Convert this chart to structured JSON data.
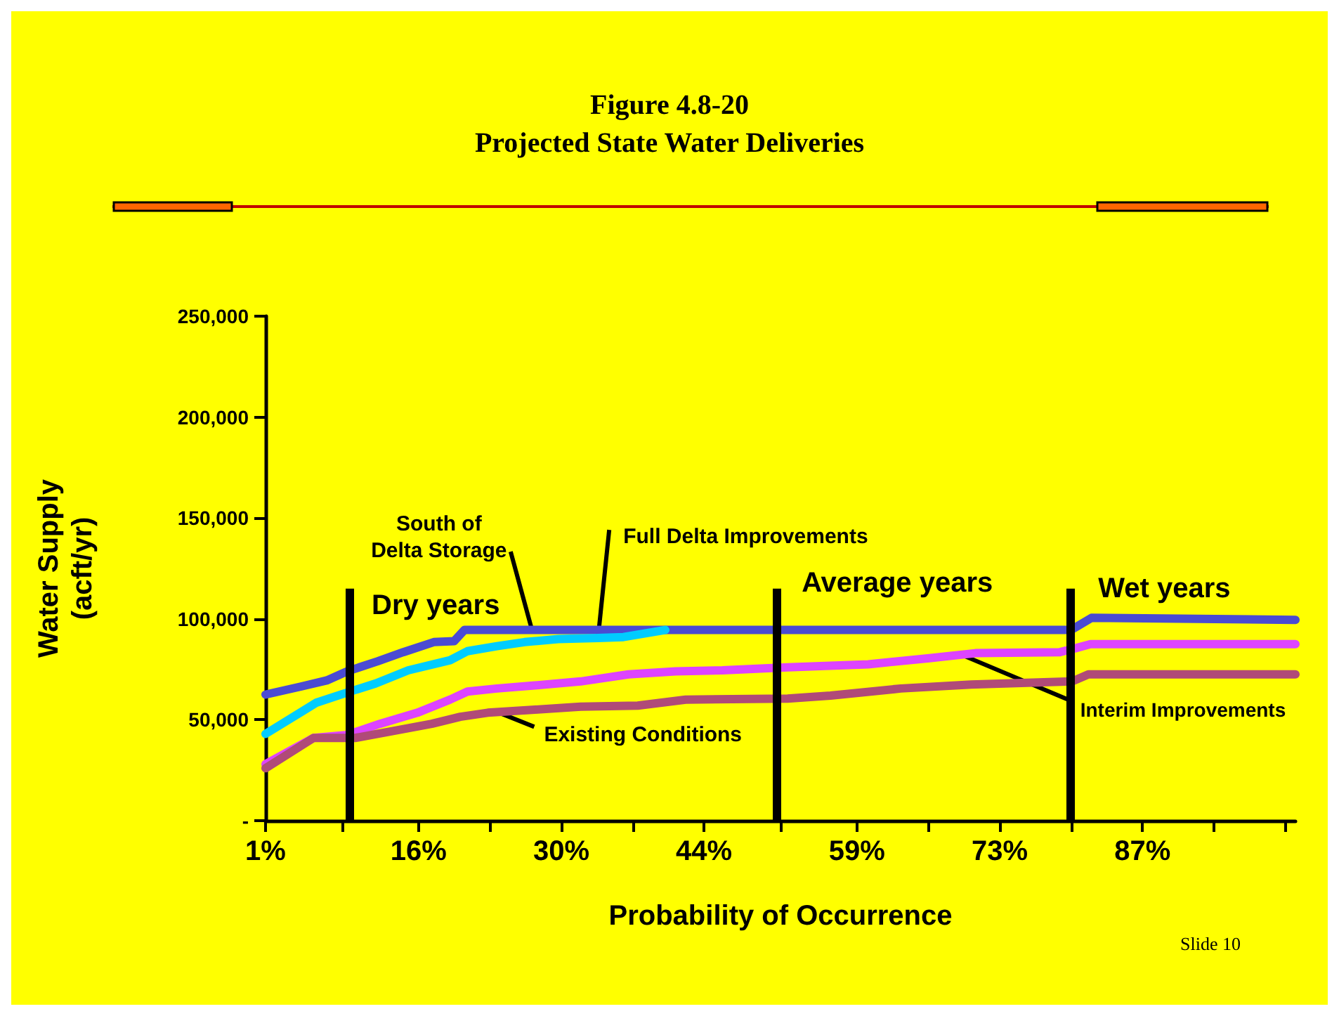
{
  "chart_data": {
    "type": "line",
    "title": "Figure 4.8-20",
    "subtitle": "Projected State Water Deliveries",
    "xlabel": "Probability of Occurrence",
    "ylabel": "Water Supply\n(acft/yr)",
    "xlim": [
      1,
      102
    ],
    "xticks": [
      {
        "value": 1,
        "label": "1%"
      },
      {
        "value": 8.5,
        "label": null
      },
      {
        "value": 16,
        "label": "16%"
      },
      {
        "value": 23,
        "label": null
      },
      {
        "value": 30,
        "label": "30%"
      },
      {
        "value": 37,
        "label": null
      },
      {
        "value": 44,
        "label": "44%"
      },
      {
        "value": 51.5,
        "label": null
      },
      {
        "value": 59,
        "label": "59%"
      },
      {
        "value": 66,
        "label": null
      },
      {
        "value": 73,
        "label": "73%"
      },
      {
        "value": 80,
        "label": null
      },
      {
        "value": 87,
        "label": "87%"
      },
      {
        "value": 94,
        "label": null
      },
      {
        "value": 101,
        "label": null
      }
    ],
    "ylim": [
      0,
      250000
    ],
    "yticks": [
      {
        "value": 0,
        "label": "-"
      },
      {
        "value": 50000,
        "label": "50,000"
      },
      {
        "value": 100000,
        "label": "100,000"
      },
      {
        "value": 150000,
        "label": "150,000"
      },
      {
        "value": 200000,
        "label": "200,000"
      },
      {
        "value": 250000,
        "label": "250,000"
      }
    ],
    "grid": false,
    "legend": false,
    "marker": "none",
    "line_style": "solid",
    "series": [
      {
        "color": "#4b4bd2",
        "x": [
          1,
          4.5,
          7,
          9,
          12,
          14.5,
          17.5,
          19.5,
          20.5,
          80,
          82,
          102
        ],
        "values": [
          62500,
          66500,
          69500,
          74000,
          79000,
          83500,
          88500,
          89000,
          94500,
          94500,
          100500,
          99500
        ]
      },
      {
        "color": "#00ccff",
        "x": [
          1,
          6,
          9,
          11.8,
          15,
          19.1,
          20.8,
          23.7,
          26.4,
          29.7,
          33.6,
          36.1,
          40.2
        ],
        "values": [
          43000,
          58500,
          63500,
          68000,
          74500,
          79500,
          84000,
          86500,
          88500,
          90000,
          90500,
          91000,
          94500
        ]
      },
      {
        "color": "#dd44ff",
        "x": [
          1,
          5.7,
          9,
          12.2,
          15.9,
          19.1,
          20.8,
          23.7,
          27.4,
          31.9,
          36.6,
          41.2,
          45.8,
          52.2,
          60.1,
          66.1,
          70.6,
          78.9,
          80.1,
          81.9,
          102
        ],
        "values": [
          28000,
          41000,
          42500,
          48000,
          53500,
          60000,
          64000,
          65500,
          67000,
          69000,
          72500,
          74000,
          74500,
          76000,
          77500,
          80500,
          83000,
          83500,
          85000,
          87500,
          87500
        ]
      },
      {
        "color": "#b04a78",
        "x": [
          1,
          5.7,
          9.8,
          13.6,
          17.3,
          20.1,
          22.8,
          27.4,
          31.9,
          37.5,
          42.2,
          52.2,
          56.4,
          63.3,
          70.2,
          80.1,
          81.7,
          102
        ],
        "values": [
          26000,
          41000,
          41000,
          44500,
          48000,
          51500,
          53500,
          55000,
          56500,
          57000,
          60000,
          60500,
          62000,
          65500,
          67500,
          69000,
          72500,
          72500
        ]
      }
    ],
    "ref_lines": [
      {
        "axis": "x",
        "value": 9.2,
        "label": "Dry years"
      },
      {
        "axis": "x",
        "value": 51.1,
        "label": "Average years"
      },
      {
        "axis": "x",
        "value": 79.9,
        "label": "Wet years"
      }
    ],
    "annotations": [
      {
        "text": "South of\nDelta Storage",
        "x": 27.1,
        "y": 95000
      },
      {
        "text": "Full Delta Improvements",
        "x": 33.6,
        "y": 90500
      },
      {
        "text": "Existing Conditions",
        "x": 23.9,
        "y": 53500
      },
      {
        "text": "Interim Improvements",
        "x": 69.6,
        "y": 81500
      },
      "Slide 10"
    ]
  }
}
